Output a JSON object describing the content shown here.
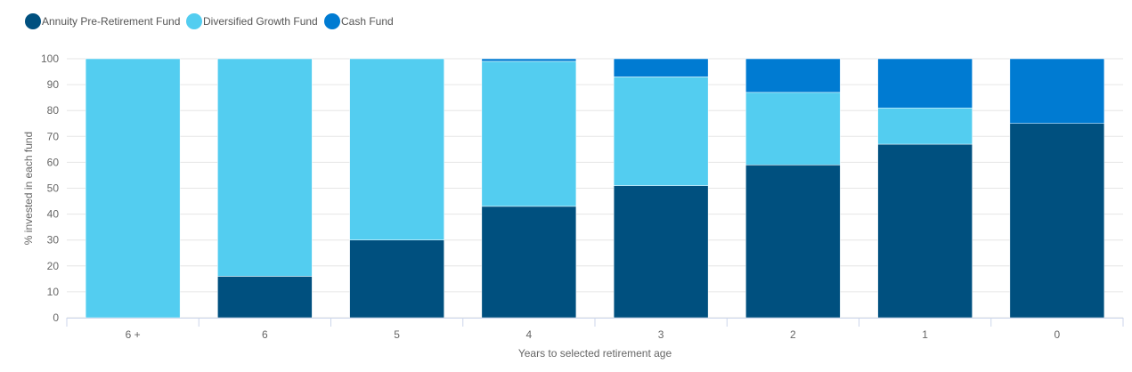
{
  "chart_data": {
    "type": "bar",
    "stacked": true,
    "categories": [
      "6 +",
      "6",
      "5",
      "4",
      "3",
      "2",
      "1",
      "0"
    ],
    "series": [
      {
        "name": "Annuity Pre-Retirement Fund",
        "color": "#00507f",
        "values": [
          0,
          16,
          30,
          43,
          51,
          59,
          67,
          75
        ]
      },
      {
        "name": "Diversified Growth Fund",
        "color": "#53cdf0",
        "values": [
          100,
          84,
          70,
          56,
          42,
          28,
          14,
          0
        ]
      },
      {
        "name": "Cash Fund",
        "color": "#007bd2",
        "values": [
          0,
          0,
          0,
          1,
          7,
          13,
          19,
          25
        ]
      }
    ],
    "xlabel": "Years to selected retirement age",
    "ylabel": "% invested in each fund",
    "ylim": [
      0,
      100
    ],
    "yticks": [
      "0",
      "10",
      "20",
      "30",
      "40",
      "50",
      "60",
      "70",
      "80",
      "90",
      "100"
    ],
    "grid": true,
    "legend_position": "top-left"
  }
}
